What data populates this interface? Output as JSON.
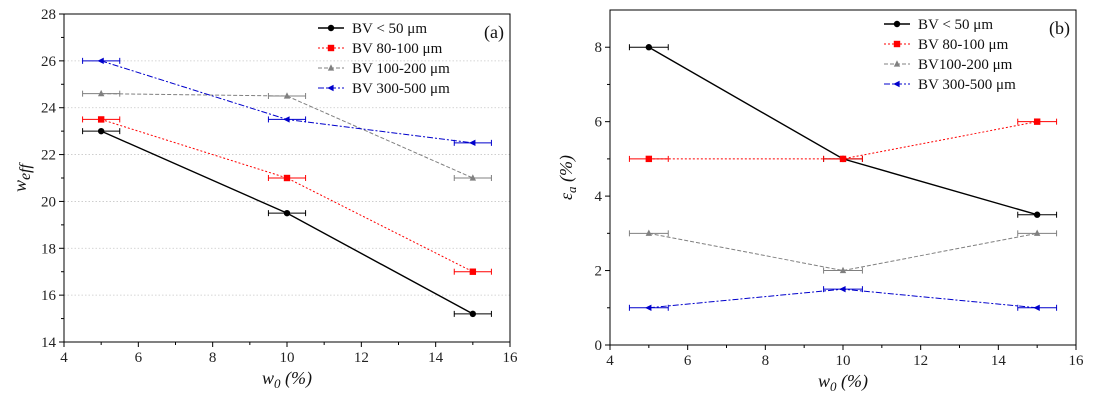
{
  "chart_data": [
    {
      "type": "line",
      "panel_label": "(a)",
      "xlabel_main": "w",
      "xlabel_sub": "0",
      "xlabel_tail": " (%)",
      "ylabel_main": "w",
      "ylabel_sub": "eff",
      "xlim": [
        4,
        16
      ],
      "ylim": [
        14,
        28
      ],
      "xticks": [
        "4",
        "6",
        "8",
        "10",
        "12",
        "14",
        "16"
      ],
      "yticks": [
        "14",
        "16",
        "18",
        "20",
        "22",
        "24",
        "26",
        "28"
      ],
      "grid": "horizontal-dotted",
      "legend_position": "top-right",
      "series": [
        {
          "name": "BV < 50 μm",
          "color": "#000000",
          "dash": "solid",
          "marker": "circle",
          "x": [
            5,
            10,
            15
          ],
          "y": [
            23.0,
            19.5,
            15.2
          ],
          "xerr": [
            0.5,
            0.5,
            0.5
          ]
        },
        {
          "name": "BV 80-100 μm",
          "color": "#ff0000",
          "dash": "dotted",
          "marker": "square",
          "x": [
            5,
            10,
            15
          ],
          "y": [
            23.5,
            21.0,
            17.0
          ],
          "xerr": [
            0.5,
            0.5,
            0.5
          ]
        },
        {
          "name": "BV 100-200 μm",
          "color": "#808080",
          "dash": "dashed",
          "marker": "triangle",
          "x": [
            5,
            10,
            15
          ],
          "y": [
            24.6,
            24.5,
            21.0
          ],
          "xerr": [
            0.5,
            0.5,
            0.5
          ]
        },
        {
          "name": "BV 300-500 μm",
          "color": "#0000cc",
          "dash": "dashdot",
          "marker": "triangle-left",
          "x": [
            5,
            10,
            15
          ],
          "y": [
            26.0,
            23.5,
            22.5
          ],
          "xerr": [
            0.5,
            0.5,
            0.5
          ]
        }
      ]
    },
    {
      "type": "line",
      "panel_label": "(b)",
      "xlabel_main": "w",
      "xlabel_sub": "0",
      "xlabel_tail": " (%)",
      "ylabel_main": "ε",
      "ylabel_sub": "a",
      "ylabel_tail": " (%)",
      "xlim": [
        4,
        16
      ],
      "ylim": [
        0,
        9
      ],
      "xticks": [
        "4",
        "6",
        "8",
        "10",
        "12",
        "14",
        "16"
      ],
      "yticks": [
        "0",
        "2",
        "4",
        "6",
        "8"
      ],
      "grid": "none",
      "legend_position": "top-right",
      "series": [
        {
          "name": "BV < 50 μm",
          "color": "#000000",
          "dash": "solid",
          "marker": "circle",
          "x": [
            5,
            10,
            15
          ],
          "y": [
            8.0,
            5.0,
            3.5
          ],
          "xerr": [
            0.5,
            0.5,
            0.5
          ]
        },
        {
          "name": "BV 80-100 μm",
          "color": "#ff0000",
          "dash": "dotted",
          "marker": "square",
          "x": [
            5,
            10,
            15
          ],
          "y": [
            5.0,
            5.0,
            6.0
          ],
          "xerr": [
            0.5,
            0.5,
            0.5
          ]
        },
        {
          "name": "BV100-200 μm",
          "color": "#808080",
          "dash": "dashed",
          "marker": "triangle",
          "x": [
            5,
            10,
            15
          ],
          "y": [
            3.0,
            2.0,
            3.0
          ],
          "xerr": [
            0.5,
            0.5,
            0.5
          ]
        },
        {
          "name": "BV 300-500 μm",
          "color": "#0000cc",
          "dash": "dashdot",
          "marker": "triangle-left",
          "x": [
            5,
            10,
            15
          ],
          "y": [
            1.0,
            1.5,
            1.0
          ],
          "xerr": [
            0.5,
            0.5,
            0.5
          ]
        }
      ]
    }
  ]
}
